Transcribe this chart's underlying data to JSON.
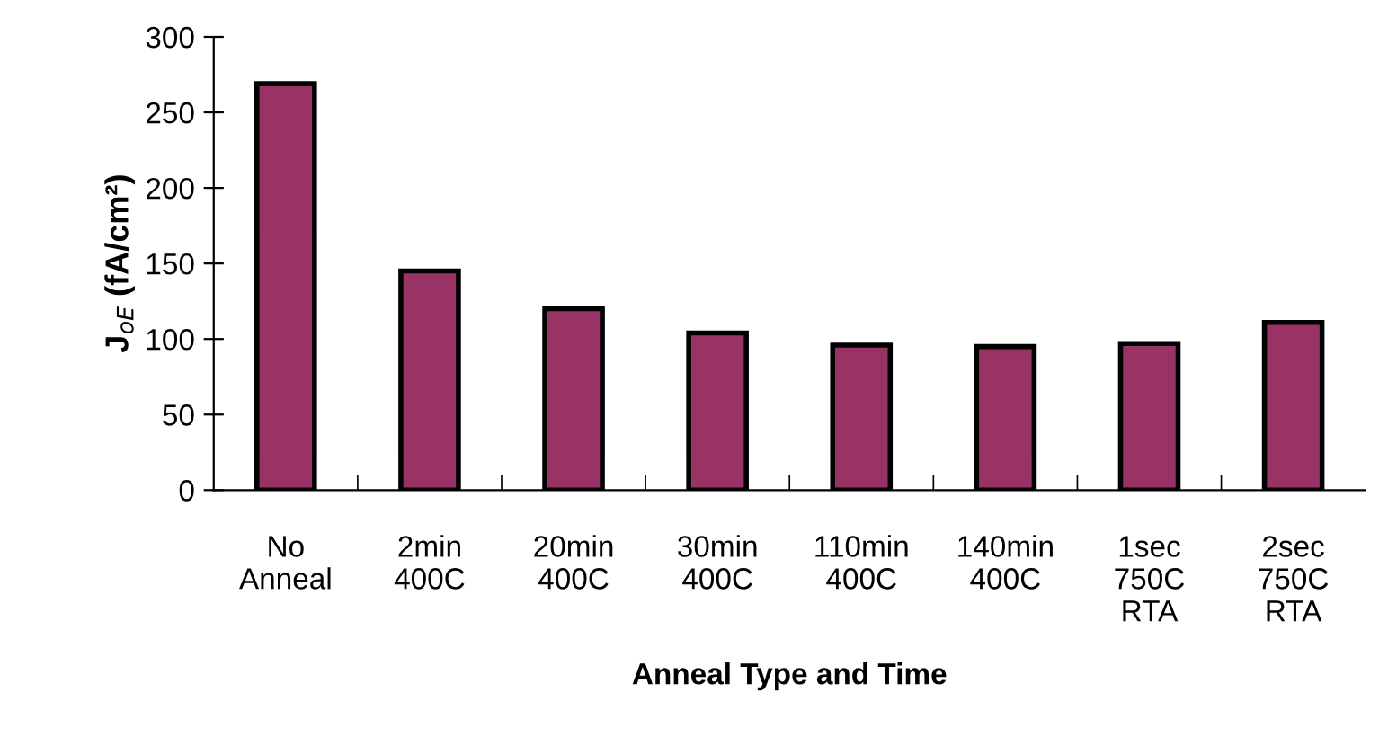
{
  "chart_data": {
    "type": "bar",
    "xlabel": "Anneal Type and Time",
    "ylabel": "J$_{oE}$ (fA/cm²)",
    "categories": [
      "No\nAnneal",
      "2min\n400C",
      "20min\n400C",
      "30min\n400C",
      "110min\n400C",
      "140min\n400C",
      "1sec\n750C\nRTA",
      "2sec\n750C\nRTA"
    ],
    "series": [
      {
        "color": "#993366",
        "values": [
          269,
          145,
          120,
          104,
          96,
          95,
          97,
          111
        ]
      }
    ],
    "ylim": [
      0,
      300
    ],
    "yticks": [
      0,
      50,
      100,
      150,
      200,
      250,
      300
    ],
    "grid": false,
    "legend": false
  }
}
